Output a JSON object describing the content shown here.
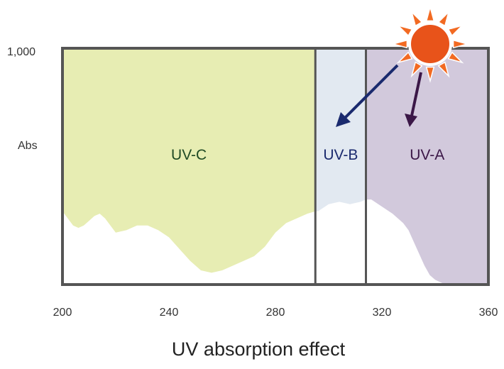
{
  "chart_data": {
    "type": "area",
    "title": "UV absorption effect",
    "xlabel": "",
    "ylabel": "Abs",
    "xlim": [
      200,
      360
    ],
    "x_ticks": [
      "200",
      "240",
      "280",
      "320",
      "360"
    ],
    "y_ticks": [
      "1,000"
    ],
    "grid": false,
    "bands": [
      {
        "name": "UV-C",
        "range": [
          200,
          295
        ],
        "fill": "#e7edb3",
        "label_color": "#1f4a24"
      },
      {
        "name": "UV-B",
        "range": [
          295,
          314
        ],
        "fill": "#e2e9f1",
        "label_color": "#1a2a6e"
      },
      {
        "name": "UV-A",
        "range": [
          314,
          360
        ],
        "fill": "#d2c9dc",
        "label_color": "#3b1747"
      }
    ],
    "boundary_lines": [
      295,
      314
    ],
    "absorption_curve": {
      "x": [
        200,
        202,
        204,
        206,
        208,
        210,
        212,
        214,
        216,
        218,
        220,
        224,
        228,
        232,
        236,
        240,
        244,
        248,
        252,
        256,
        260,
        264,
        268,
        272,
        276,
        280,
        284,
        288,
        292,
        295,
        296,
        300,
        304,
        308,
        312,
        314,
        316,
        320,
        324,
        328,
        330,
        332,
        334,
        336,
        338,
        340,
        342,
        344
      ],
      "y": [
        0.31,
        0.28,
        0.25,
        0.24,
        0.25,
        0.27,
        0.29,
        0.3,
        0.28,
        0.25,
        0.22,
        0.23,
        0.25,
        0.25,
        0.23,
        0.2,
        0.15,
        0.1,
        0.06,
        0.05,
        0.06,
        0.08,
        0.1,
        0.12,
        0.16,
        0.22,
        0.26,
        0.28,
        0.3,
        0.31,
        0.31,
        0.34,
        0.35,
        0.34,
        0.35,
        0.36,
        0.36,
        0.33,
        0.3,
        0.26,
        0.23,
        0.18,
        0.13,
        0.08,
        0.04,
        0.02,
        0.01,
        0.0
      ]
    }
  },
  "icons": {
    "sun": "sun-icon",
    "arrows": [
      "arrow-to-uvb",
      "arrow-to-uva"
    ]
  },
  "colors": {
    "axis_frame": "#555555",
    "sun_core": "#e8531a",
    "sun_rays": "#f26a22",
    "arrow_uvb": "#1a2a6e",
    "arrow_uva": "#3b1747"
  }
}
